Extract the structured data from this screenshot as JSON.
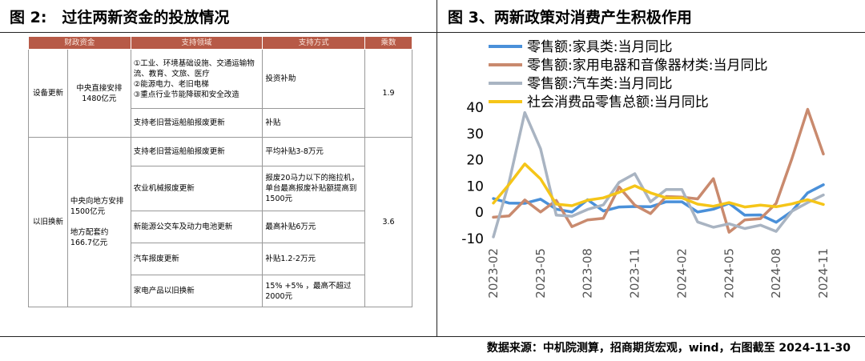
{
  "left_title": "图 2:　过往两新资金的投放情况",
  "right_title": "图 3、两新政策对消费产生积极作用",
  "source": "数据来源：中机院测算，招商期货宏观，wind，右图截至 2024-11-30",
  "table": {
    "headers": [
      "财政资金",
      "支持领域",
      "支持方式",
      "乘数"
    ],
    "groups": [
      {
        "category": "设备更新",
        "funding": "中央直接安排\n1480亿元",
        "multiplier": "1.9",
        "rows": [
          {
            "area": "①工业、环境基础设施、交通运输物流、教育、文旅、医疗\n②能源电力、老旧电梯\n③重点行业节能降碳和安全改造",
            "method": "投资补助"
          },
          {
            "area": "支持老旧营运船舶报废更新",
            "method": "补贴"
          }
        ]
      },
      {
        "category": "以旧换新",
        "funding": "中央向地方安排\n1500亿元\n\n地方配套约\n166.7亿元",
        "multiplier": "3.6",
        "rows": [
          {
            "area": "支持老旧营运船舶报废更新",
            "method": "平均补贴3-8万元"
          },
          {
            "area": "农业机械报废更新",
            "method": "报废20马力以下的拖拉机，单台最高报废补贴额提高到1500元"
          },
          {
            "area": "新能源公交车及动力电池更新",
            "method": "最高补贴6万元"
          },
          {
            "area": "汽车报废更新",
            "method": "补贴1.2-2万元"
          },
          {
            "area": "家电产品以旧换新",
            "method": "15% +5% ，最高不超过2000元"
          }
        ]
      }
    ]
  },
  "chart_data": {
    "type": "line",
    "title": "",
    "xlabel": "",
    "ylabel": "",
    "ylim": [
      -10,
      40
    ],
    "yticks": [
      -10,
      0,
      10,
      20,
      30,
      40
    ],
    "x": [
      "2023-02",
      "2023-03",
      "2023-04",
      "2023-05",
      "2023-06",
      "2023-07",
      "2023-08",
      "2023-09",
      "2023-10",
      "2023-11",
      "2023-12",
      "2024-01",
      "2024-02",
      "2024-03",
      "2024-04",
      "2024-05",
      "2024-06",
      "2024-07",
      "2024-08",
      "2024-09",
      "2024-10",
      "2024-11"
    ],
    "xtick_labels": [
      "2023-02",
      "2023-05",
      "2023-08",
      "2023-11",
      "2024-02",
      "2024-05",
      "2024-08",
      "2024-11"
    ],
    "legend_position": "top",
    "series": [
      {
        "name": "零售额:家具类:当月同比",
        "color": "#4a90d9",
        "values": [
          5.2,
          3.5,
          3.4,
          5.0,
          1.2,
          0.1,
          4.8,
          0.5,
          2.0,
          2.2,
          2.1,
          4.0,
          4.0,
          0.1,
          1.2,
          3.4,
          -1.1,
          -1.0,
          -3.8,
          0.4,
          7.4,
          10.5
        ]
      },
      {
        "name": "零售额:家用电器和音像器材类:当月同比",
        "color": "#c98a6e",
        "values": [
          -1.9,
          -1.4,
          4.7,
          0.1,
          4.5,
          -5.5,
          -2.9,
          -2.3,
          9.6,
          2.7,
          -0.5,
          6.0,
          5.8,
          5.1,
          12.8,
          -7.6,
          -2.9,
          -2.4,
          3.4,
          20.5,
          39.2,
          22.2
        ]
      },
      {
        "name": "零售额:汽车类:当月同比",
        "color": "#a9b4c2",
        "values": [
          -9.4,
          11.5,
          38.0,
          24.2,
          -1.1,
          -1.5,
          1.1,
          2.8,
          11.4,
          14.7,
          4.0,
          8.7,
          8.7,
          -3.7,
          -5.7,
          -4.4,
          -6.2,
          -4.9,
          -7.3,
          0.4,
          3.7,
          6.6
        ]
      },
      {
        "name": "社会消费品零售总额:当月同比",
        "color": "#f5c518",
        "values": [
          3.5,
          10.6,
          18.4,
          12.7,
          3.1,
          2.5,
          4.6,
          5.5,
          7.6,
          10.1,
          7.4,
          5.5,
          5.5,
          3.1,
          2.3,
          3.7,
          2.0,
          2.7,
          2.1,
          3.2,
          4.8,
          3.0
        ]
      }
    ]
  }
}
